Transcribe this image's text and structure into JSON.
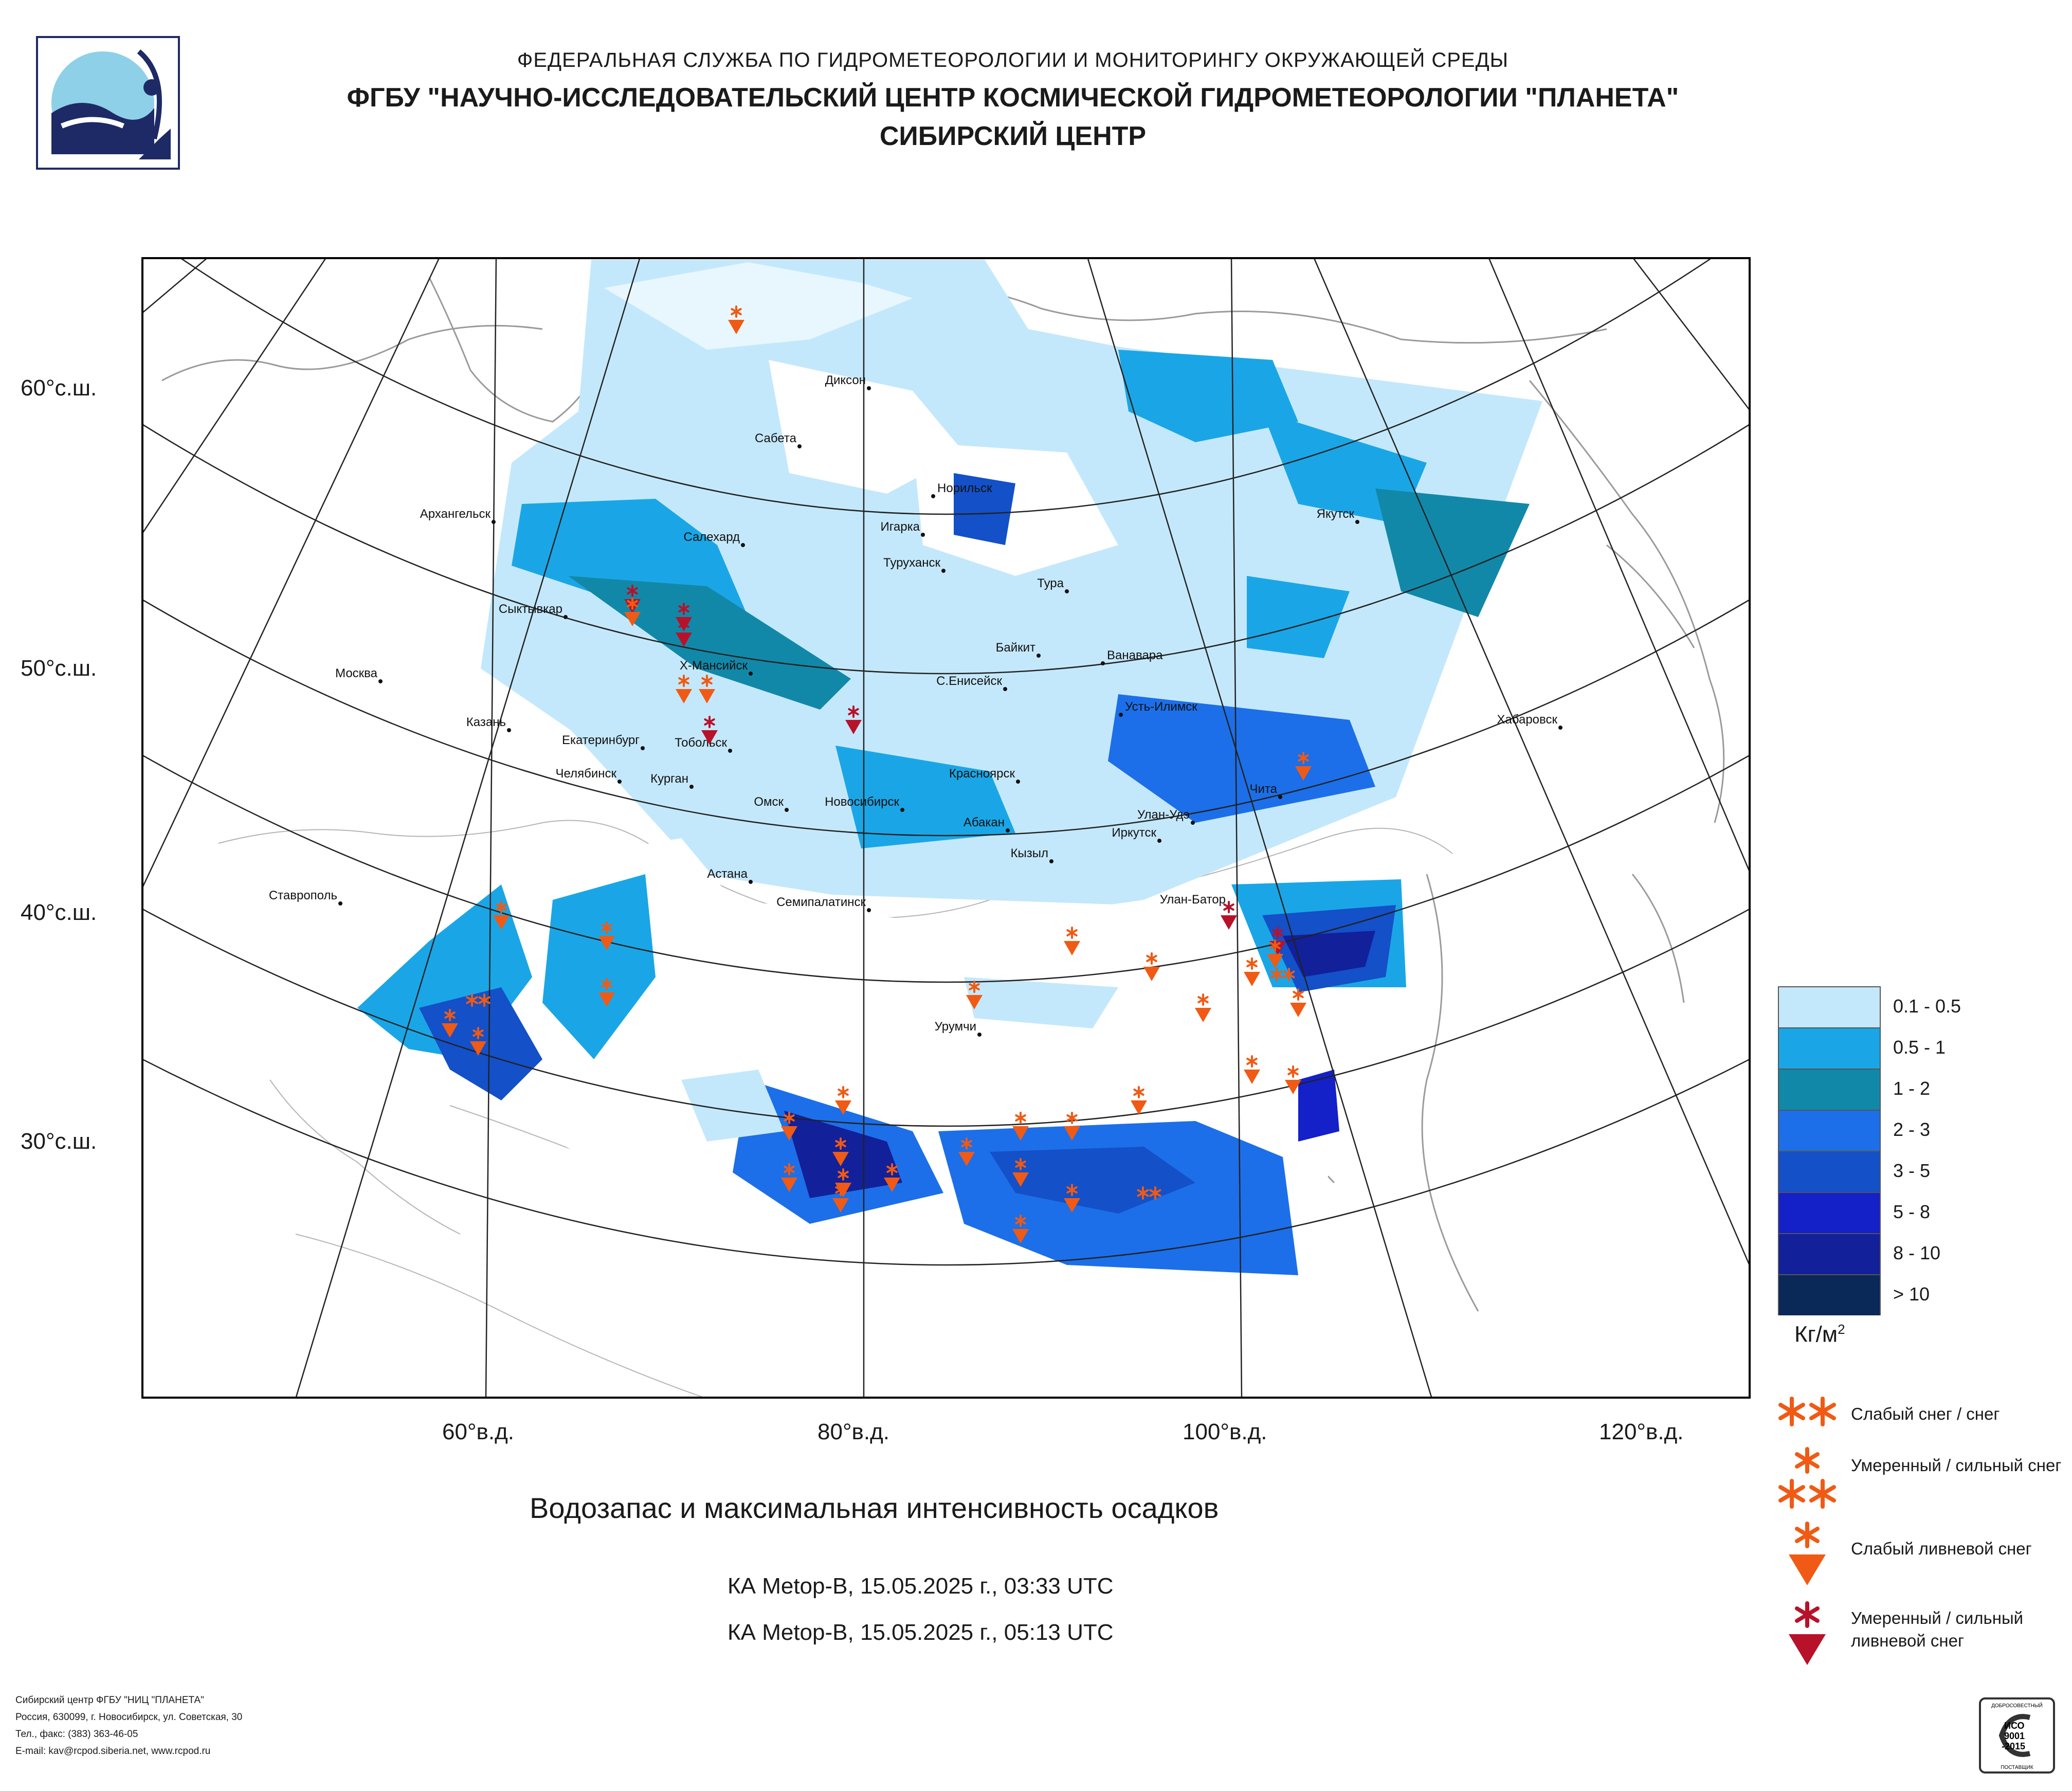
{
  "header": {
    "line1": "ФЕДЕРАЛЬНАЯ СЛУЖБА ПО ГИДРОМЕТЕОРОЛОГИИ И МОНИТОРИНГУ ОКРУЖАЮЩЕЙ СРЕДЫ",
    "line2": "ФГБУ \"НАУЧНО-ИССЛЕДОВАТЕЛЬСКИЙ ЦЕНТР КОСМИЧЕСКОЙ ГИДРОМЕТЕОРОЛОГИИ \"ПЛАНЕТА\"",
    "line3": "СИБИРСКИЙ ЦЕНТР"
  },
  "lat_labels": [
    "60°с.ш.",
    "50°с.ш.",
    "40°с.ш.",
    "30°с.ш."
  ],
  "lon_labels": [
    "60°в.д.",
    "80°в.д.",
    "100°в.д.",
    "120°в.д."
  ],
  "cities": [
    "Диксон",
    "Сабета",
    "Норильск",
    "Игарка",
    "Салехард",
    "Туруханск",
    "Тура",
    "Якутск",
    "Архангельск",
    "Сыктывкар",
    "Москва",
    "Х-Мансийск",
    "Байкит",
    "Ванавара",
    "С.Енисейск",
    "Усть-Илимск",
    "Казань",
    "Екатеринбург",
    "Тобольск",
    "Хабаровск",
    "Челябинск",
    "Курган",
    "Омск",
    "Новосибирск",
    "Красноярск",
    "Чита",
    "Абакан",
    "Улан-Удэ",
    "Иркутск",
    "Кызыл",
    "Астана",
    "Ставрополь",
    "Улан-Батор",
    "Семипалатинск",
    "Урумчи"
  ],
  "title": "Водозапас и максимальная интенсивность осадков",
  "sat_passes": [
    "КА Metop-B, 15.05.2025 г., 03:33 UTC",
    "КА Metop-B, 15.05.2025 г., 05:13 UTC"
  ],
  "legend": {
    "classes": [
      {
        "label": "0.1 - 0.5",
        "color": "#c4e8fb"
      },
      {
        "label": "0.5 - 1",
        "color": "#1aa6e6"
      },
      {
        "label": "1 - 2",
        "color": "#1288a8"
      },
      {
        "label": "2 - 3",
        "color": "#1c6fe8"
      },
      {
        "label": "3 - 5",
        "color": "#1450c8"
      },
      {
        "label": "5 - 8",
        "color": "#1420c8"
      },
      {
        "label": "8 - 10",
        "color": "#12209a"
      },
      {
        "label": "> 10",
        "color": "#0a2858"
      }
    ],
    "unit": "Кг/м",
    "unit_sup": "2",
    "symbols": [
      {
        "label": "Слабый снег / снег",
        "color": "#f05a14"
      },
      {
        "label": "Умеренный / сильный снег",
        "color": "#f05a14"
      },
      {
        "label": "Слабый ливневой снег",
        "color": "#f05a14"
      },
      {
        "label": "Умеренный / сильный ливневой снег",
        "color": "#b8122a"
      }
    ]
  },
  "footer": {
    "line1": "Сибирский центр ФГБУ \"НИЦ \"ПЛАНЕТА\"",
    "line2": "Россия, 630099, г. Новосибирск, ул. Советская, 30",
    "line3": "Тел., факс: (383) 363-46-05",
    "line4": "E-mail: kav@rcpod.siberia.net, www.rcpod.ru"
  },
  "iso_badge": {
    "top": "ДОБРОСОВЕСТНЫЙ",
    "iso": "ИСО",
    "num": "9001",
    "year": "-2015",
    "bottom": "ПОСТАВЩИК"
  }
}
